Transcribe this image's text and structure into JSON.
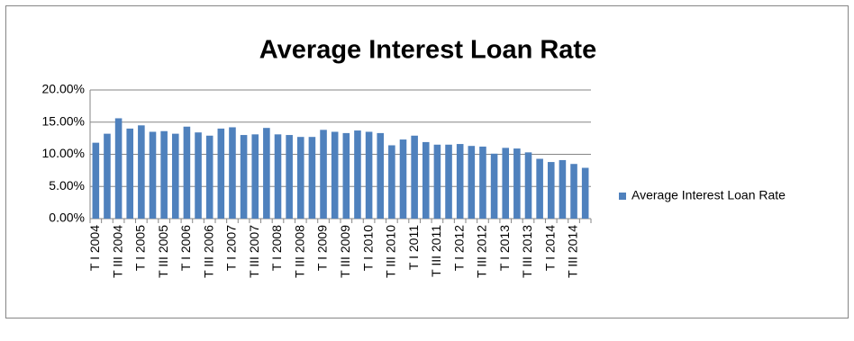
{
  "chart_data": {
    "type": "bar",
    "title": "Average Interest Loan Rate",
    "categories": [
      "T I 2004",
      null,
      "T III 2004",
      null,
      "T I 2005",
      null,
      "T III 2005",
      null,
      "T I 2006",
      null,
      "T III 2006",
      null,
      "T I 2007",
      null,
      "T III 2007",
      null,
      "T I 2008",
      null,
      "T III 2008",
      null,
      "T I 2009",
      null,
      "T III 2009",
      null,
      "T I 2010",
      null,
      "T III 2010",
      null,
      "T I 2011",
      null,
      "T III 2011",
      null,
      "T I 2012",
      null,
      "T III 2012",
      null,
      "T I 2013",
      null,
      "T III 2013",
      null,
      "T I 2014",
      null,
      "T III 2014",
      null
    ],
    "series": [
      {
        "name": "Average Interest Loan Rate",
        "color": "#4f81bd",
        "values": [
          11.8,
          13.2,
          15.6,
          14.0,
          14.5,
          13.5,
          13.6,
          13.2,
          14.3,
          13.4,
          12.9,
          14.0,
          14.2,
          13.0,
          13.1,
          14.1,
          13.1,
          13.0,
          12.7,
          12.7,
          13.8,
          13.5,
          13.3,
          13.7,
          13.5,
          13.3,
          11.4,
          12.3,
          12.9,
          11.9,
          11.5,
          11.5,
          11.6,
          11.3,
          11.2,
          10.1,
          11.0,
          10.9,
          10.3,
          9.3,
          8.8,
          9.1,
          8.5,
          7.9
        ]
      }
    ],
    "ylim": [
      0,
      20
    ],
    "yticks": [
      {
        "value": 0,
        "label": "0.00%"
      },
      {
        "value": 5,
        "label": "5.00%"
      },
      {
        "value": 10,
        "label": "10.00%"
      },
      {
        "value": 15,
        "label": "15.00%"
      },
      {
        "value": 20,
        "label": "20.00%"
      }
    ],
    "grid": true,
    "legend": "right"
  }
}
